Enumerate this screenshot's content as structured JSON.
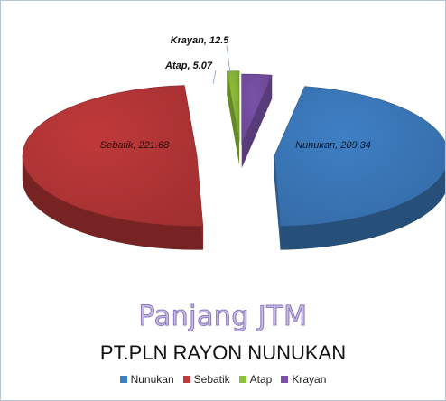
{
  "chart_data": {
    "type": "pie",
    "title": "Panjang JTM",
    "subtitle": "PT.PLN RAYON  NUNUKAN",
    "legend_position": "bottom",
    "slices": [
      {
        "name": "Nunukan",
        "value": 209.34,
        "label": "Nunukan, 209.34",
        "color": "#3e7fc4"
      },
      {
        "name": "Sebatik",
        "value": 221.68,
        "label": "Sebatik, 221.68",
        "color": "#c0393a"
      },
      {
        "name": "Atap",
        "value": 5.07,
        "label": "Atap, 5.07",
        "color": "#8dbf38"
      },
      {
        "name": "Krayan",
        "value": 12.5,
        "label": "Krayan, 12.5",
        "color": "#7a52a8"
      }
    ]
  }
}
